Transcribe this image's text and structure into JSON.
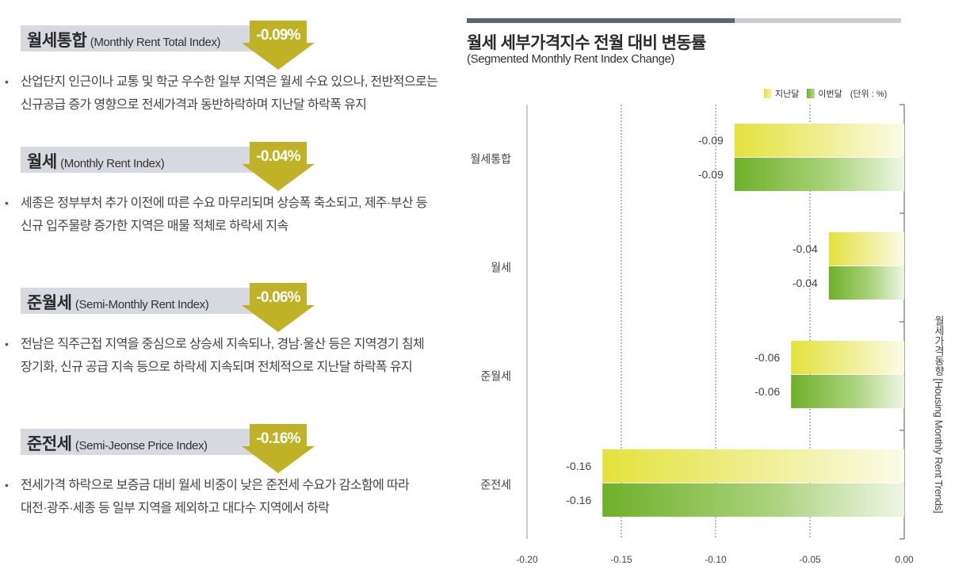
{
  "sections": [
    {
      "title_ko": "월세통합",
      "title_en": "(Monthly Rent Total Index)",
      "value": "-0.09%",
      "bullet_lines": [
        "산업단지 인근이나 교통 및 학군 우수한 일부 지역은 월세 수요 있으나, 전반적으로는",
        "신규공급 증가 영향으로 전세가격과 동반하락하며 지난달 하락폭 유지"
      ]
    },
    {
      "title_ko": "월세",
      "title_en": "(Monthly Rent Index)",
      "value": "-0.04%",
      "bullet_lines": [
        "세종은 정부부처 추가 이전에 따른 수요 마무리되며 상승폭 축소되고, 제주·부산 등",
        "신규 입주물량 증가한 지역은 매물 적체로 하락세 지속"
      ]
    },
    {
      "title_ko": "준월세",
      "title_en": "(Semi-Monthly Rent Index)",
      "value": "-0.06%",
      "bullet_lines": [
        "전남은 직주근접 지역을 중심으로 상승세 지속되나, 경남·울산 등은 지역경기 침체",
        "장기화, 신규 공급 지속 등으로 하락세 지속되며 전체적으로 지난달 하락폭 유지"
      ]
    },
    {
      "title_ko": "준전세",
      "title_en": "(Semi-Jeonse Price Index)",
      "value": "-0.16%",
      "bullet_lines": [
        "전세가격 하락으로 보증금 대비 월세 비중이 낮은 준전세 수요가 감소함에 따라",
        "대전·광주·세종 등 일부 지역을 제외하고 대다수 지역에서 하락"
      ]
    }
  ],
  "bullet_symbol": "•",
  "chart_data": {
    "type": "bar",
    "orientation": "horizontal",
    "title": "월세 세부가격지수 전월 대비 변동률",
    "subtitle": "(Segmented Monthly Rent Index Change)",
    "categories": [
      "월세통합",
      "월세",
      "준월세",
      "준전세"
    ],
    "series": [
      {
        "name": "지난달",
        "values": [
          -0.09,
          -0.04,
          -0.06,
          -0.16
        ],
        "labels": [
          "-0.09",
          "-0.04",
          "-0.06",
          "-0.16"
        ],
        "color": "#e3e23d"
      },
      {
        "name": "이번달",
        "values": [
          -0.09,
          -0.04,
          -0.06,
          -0.16
        ],
        "labels": [
          "-0.09",
          "-0.04",
          "-0.06",
          "-0.16"
        ],
        "color": "#6fb02a"
      }
    ],
    "legend_unit": "(단위 : %)",
    "legend_position": "top-right",
    "xlim": [
      -0.2,
      0.0
    ],
    "xticks": [
      -0.2,
      -0.15,
      -0.1,
      -0.05,
      0.0
    ],
    "xtick_labels": [
      "-0.20",
      "-0.15",
      "-0.10",
      "-0.05",
      "0.00"
    ],
    "grid": "vertical dashed",
    "side_label": "월세가격동향 [Housing Monthly Rent Trends]"
  },
  "colors": {
    "arrow": "#c0b227",
    "header_bg": "#d6d9df",
    "last_month": "#e3e23d",
    "this_month": "#6fb02a"
  }
}
